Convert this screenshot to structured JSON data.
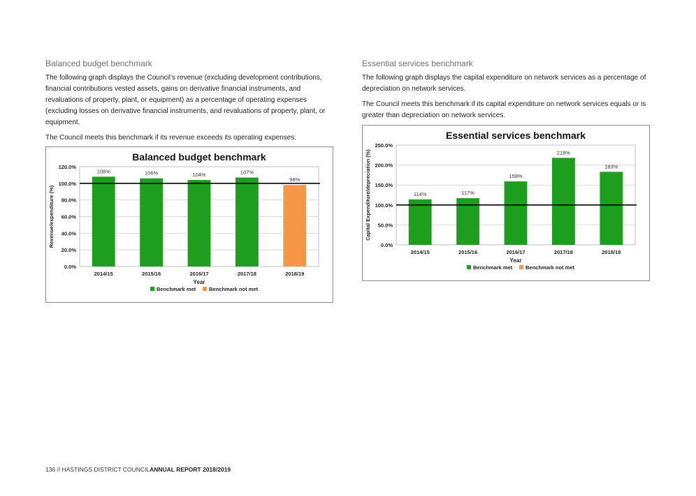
{
  "left": {
    "section_title": "Balanced budget benchmark",
    "paragraphs": [
      "The following graph displays the Council’s revenue (excluding development contributions, financial contributions vested assets, gains on derivative financial instruments, and revaluations of property, plant, or equipment) as a percentage of operating expenses (excluding losses on derivative financial instruments, and revaluations of property, plant, or equipment.",
      "The Council meets this benchmark if its revenue exceeds its operating expenses."
    ]
  },
  "right": {
    "section_title": "Essential services benchmark",
    "paragraphs": [
      "The following graph displays the capital expenditure on network services as a percentage of depreciation on network services.",
      "The Council meets this benchmark if its capital expenditure on network services equals or is greater than depreciation on network services."
    ]
  },
  "footer": {
    "prefix": "136 // HASTINGS DISTRICT COUNCIL",
    "bold": "ANNUAL REPORT 2018/2019"
  },
  "colors": {
    "met": "#1e9e1e",
    "not_met": "#f79646",
    "benchmark_line": "#000000",
    "grid": "#d9d9d9"
  },
  "chart_data": [
    {
      "type": "bar",
      "title": "Balanced budget benchmark",
      "xlabel": "Year",
      "ylabel": "Revenue/expenditure (%)",
      "categories": [
        "2014/15",
        "2015/16",
        "2016/17",
        "2017/18",
        "2018/19"
      ],
      "values": [
        108,
        106,
        104,
        107,
        98
      ],
      "data_labels": [
        "108%",
        "106%",
        "104%",
        "107%",
        "98%"
      ],
      "status": [
        "met",
        "met",
        "met",
        "met",
        "not_met"
      ],
      "y_ticks": [
        "0.0%",
        "20.0%",
        "40.0%",
        "60.0%",
        "80.0%",
        "100.0%",
        "120.0%"
      ],
      "ylim": [
        0,
        120
      ],
      "benchmark": 100,
      "grid": true,
      "legend": [
        "Benchmark met",
        "Benchmark not met"
      ],
      "legend_position": "bottom"
    },
    {
      "type": "bar",
      "title": "Essential services benchmark",
      "xlabel": "Year",
      "ylabel": "Capital Expenditure/depreciation (%)",
      "categories": [
        "2014/15",
        "2015/16",
        "2016/17",
        "2017/18",
        "2018/19"
      ],
      "values": [
        114,
        117,
        159,
        218,
        183
      ],
      "data_labels": [
        "114%",
        "117%",
        "159%",
        "218%",
        "183%"
      ],
      "status": [
        "met",
        "met",
        "met",
        "met",
        "met"
      ],
      "y_ticks": [
        "0.0%",
        "50.0%",
        "100.0%",
        "150.0%",
        "200.0%",
        "250.0%"
      ],
      "ylim": [
        0,
        250
      ],
      "benchmark": 100,
      "grid": true,
      "legend": [
        "Benchmark met",
        "Benchmark not met"
      ],
      "legend_position": "bottom"
    }
  ]
}
